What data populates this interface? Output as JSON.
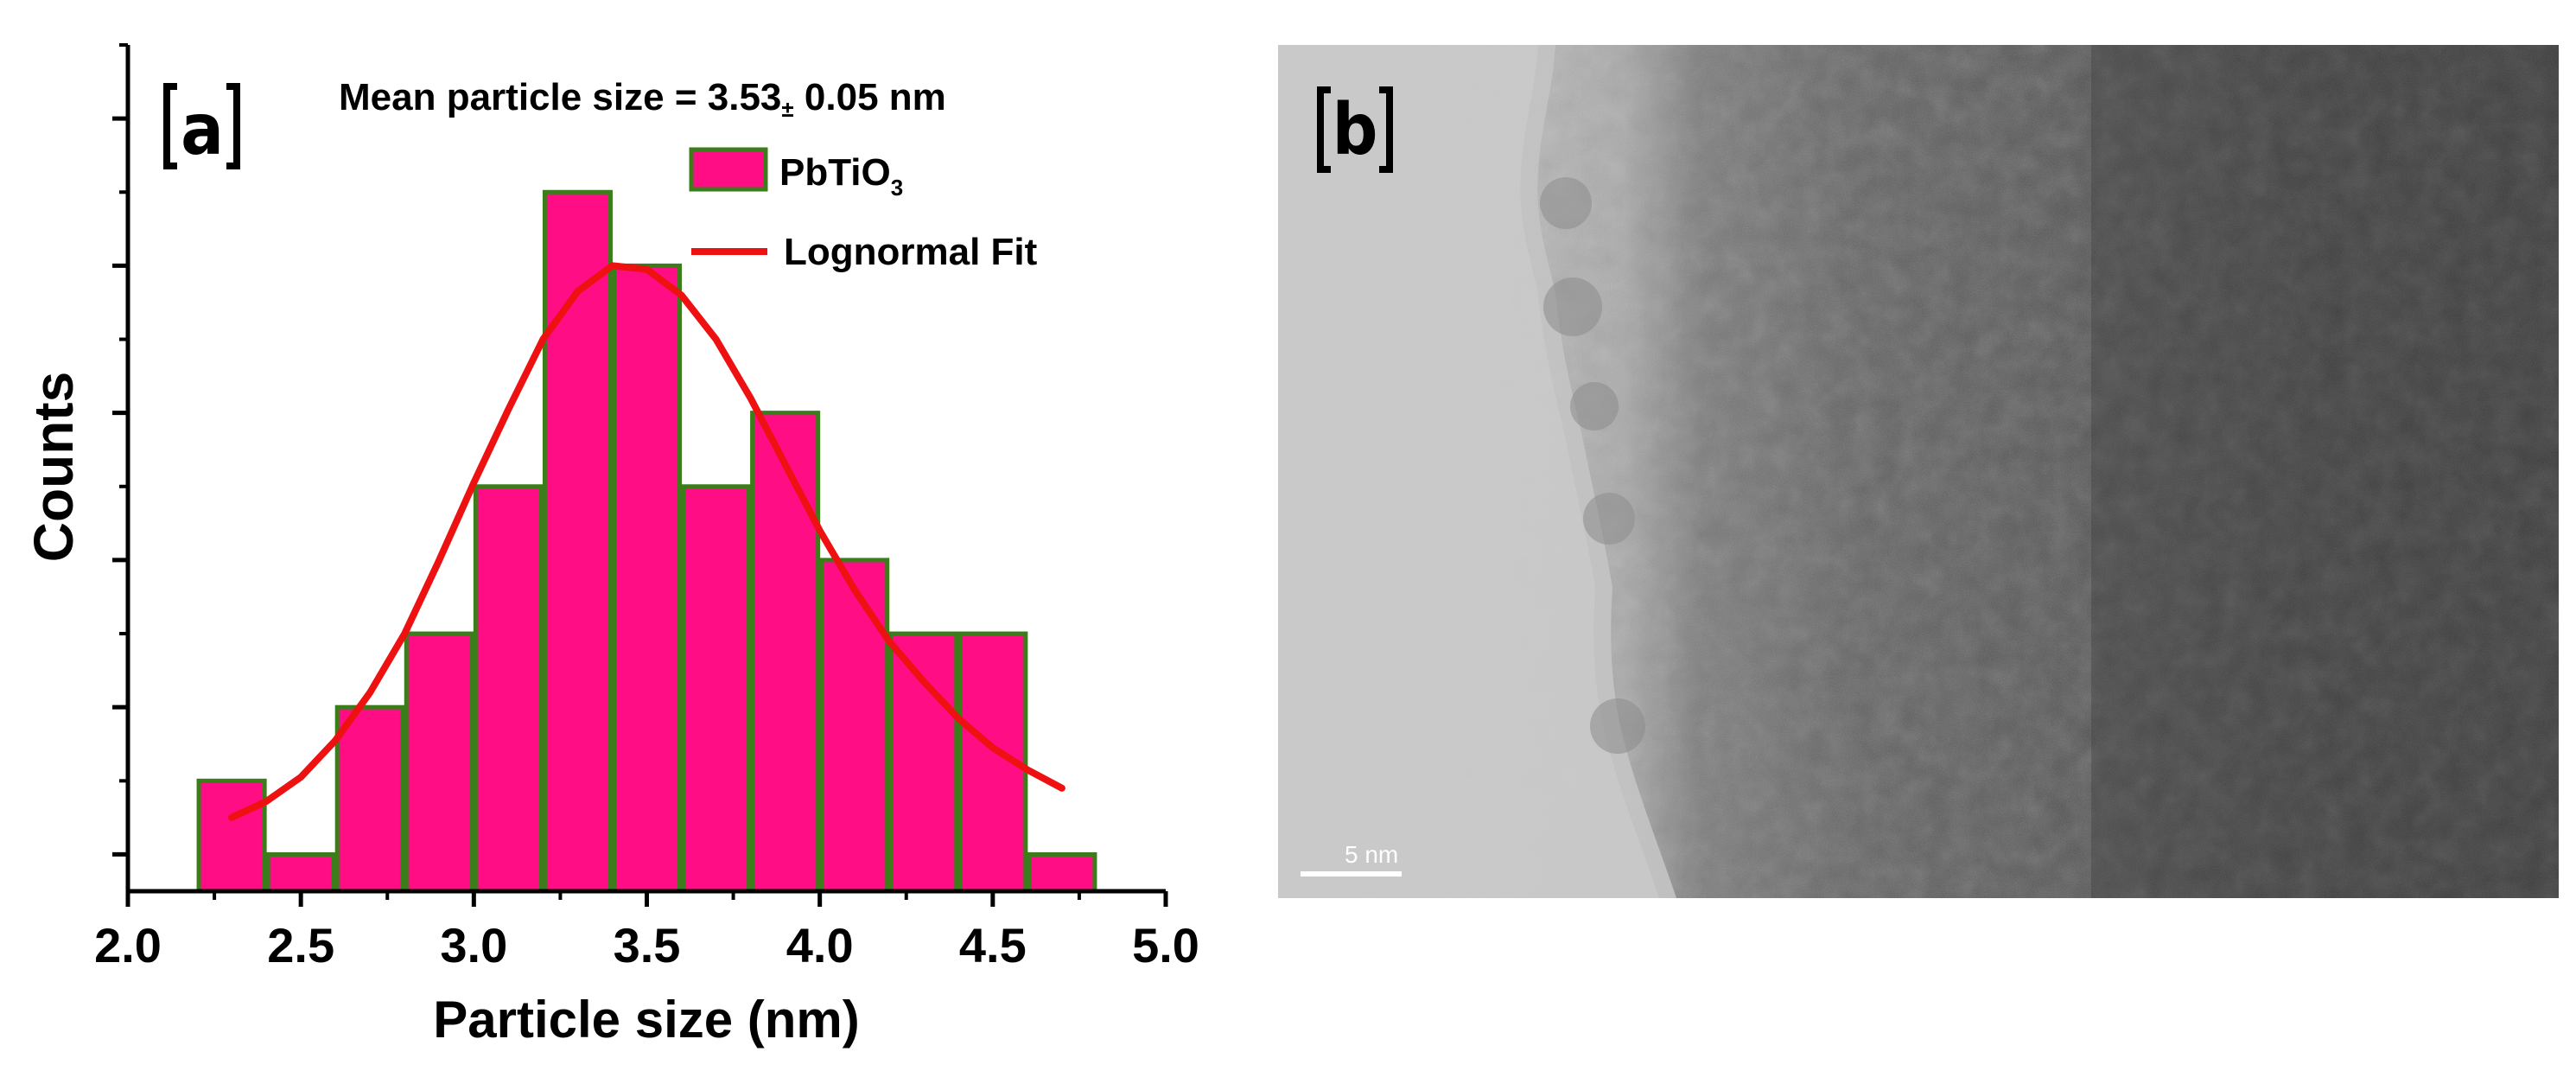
{
  "chart_data": {
    "type": "bar",
    "panel_label": "a",
    "annotation": {
      "prefix": "Mean particle size = 3.53",
      "pm": "±",
      "suffix": " 0.05 nm"
    },
    "xlabel": "Particle size (nm)",
    "ylabel": "Counts",
    "xlim": [
      2.0,
      5.0
    ],
    "ylim": [
      -0.5,
      11
    ],
    "x_ticks": [
      2.0,
      2.5,
      3.0,
      3.5,
      4.0,
      4.5,
      5.0
    ],
    "x_tick_labels": [
      "2.0",
      "2.5",
      "3.0",
      "3.5",
      "4.0",
      "4.5",
      "5.0"
    ],
    "y_ticks": [
      0,
      1,
      2,
      3,
      4,
      5,
      6,
      7,
      8,
      9,
      10,
      11
    ],
    "y_tick_labels_visible": false,
    "bin_width": 0.2,
    "bin_centers": [
      2.3,
      2.5,
      2.7,
      2.9,
      3.1,
      3.3,
      3.5,
      3.7,
      3.9,
      4.1,
      4.3,
      4.5,
      4.7
    ],
    "values": [
      1,
      0,
      2,
      3,
      5,
      9,
      8,
      5,
      6,
      4,
      3,
      3,
      0
    ],
    "bar_fill": "#ff0d84",
    "bar_edge": "#3a7d1a",
    "fit": {
      "name": "Lognormal Fit",
      "color": "#ee1111",
      "x": [
        2.3,
        2.4,
        2.5,
        2.6,
        2.7,
        2.8,
        2.9,
        3.0,
        3.1,
        3.2,
        3.3,
        3.4,
        3.5,
        3.6,
        3.7,
        3.8,
        3.9,
        4.0,
        4.1,
        4.2,
        4.3,
        4.4,
        4.5,
        4.6,
        4.7
      ],
      "y": [
        0.5,
        0.72,
        1.05,
        1.55,
        2.2,
        3.0,
        4.0,
        5.05,
        6.05,
        7.0,
        7.65,
        8.0,
        7.95,
        7.6,
        7.0,
        6.2,
        5.3,
        4.4,
        3.6,
        2.9,
        2.35,
        1.85,
        1.45,
        1.15,
        0.9
      ]
    },
    "legend": {
      "position": "top-right",
      "bar_entry": {
        "base": "PbTiO",
        "sub": "3"
      },
      "line_entry": "Lognormal Fit"
    }
  },
  "panel_b": {
    "label": "b",
    "scale_bar_text": "5 nm"
  }
}
